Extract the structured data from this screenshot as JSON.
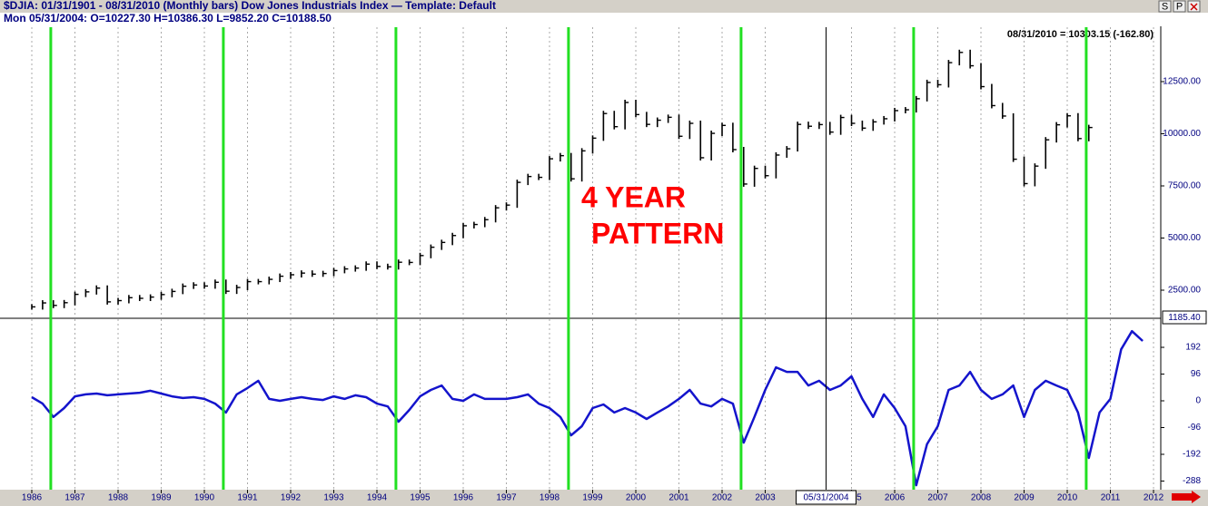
{
  "chart_data": {
    "title": "$DJIA:  01/31/1901 - 08/31/2010  (Monthly bars)   Dow Jones Industrials Index  —  Template: Default",
    "subtitle": "Mon  05/31/2004:  O=10227.30  H=10386.30  L=9852.20  C=10188.50",
    "info": "08/31/2010 = 10303.15 (-162.80)",
    "buttons": [
      "S",
      "P"
    ],
    "annotation": [
      "4 YEAR",
      "PATTERN"
    ],
    "cursor": {
      "x": 2004.41,
      "label": "05/31/2004"
    },
    "markers": {
      "color": "#22e022",
      "x": [
        1986.44,
        1990.44,
        1994.44,
        1998.44,
        2002.44,
        2006.44,
        2010.44
      ]
    },
    "xlim": [
      1985.263,
      2012.168
    ],
    "xticks": [
      1986,
      1987,
      1988,
      1989,
      1990,
      1991,
      1992,
      1993,
      1994,
      1995,
      1996,
      1997,
      1998,
      1999,
      2000,
      2001,
      2002,
      2003,
      2005,
      2006,
      2007,
      2008,
      2009,
      2010,
      2011,
      2012
    ],
    "grid": true,
    "x": [
      1986,
      1986.25,
      1986.5,
      1986.75,
      1987,
      1987.25,
      1987.5,
      1987.75,
      1988,
      1988.25,
      1988.5,
      1988.75,
      1989,
      1989.25,
      1989.5,
      1989.75,
      1990,
      1990.25,
      1990.5,
      1990.75,
      1991,
      1991.25,
      1991.5,
      1991.75,
      1992,
      1992.25,
      1992.5,
      1992.75,
      1993,
      1993.25,
      1993.5,
      1993.75,
      1994,
      1994.25,
      1994.5,
      1994.75,
      1995,
      1995.25,
      1995.5,
      1995.75,
      1996,
      1996.25,
      1996.5,
      1996.75,
      1997,
      1997.25,
      1997.5,
      1997.75,
      1998,
      1998.25,
      1998.5,
      1998.75,
      1999,
      1999.25,
      1999.5,
      1999.75,
      2000,
      2000.25,
      2000.5,
      2000.75,
      2001,
      2001.25,
      2001.5,
      2001.75,
      2002,
      2002.25,
      2002.5,
      2002.75,
      2003,
      2003.25,
      2003.5,
      2003.75,
      2004,
      2004.25,
      2004.5,
      2004.75,
      2005,
      2005.25,
      2005.5,
      2005.75,
      2006,
      2006.25,
      2006.5,
      2006.75,
      2007,
      2007.25,
      2007.5,
      2007.75,
      2008,
      2008.25,
      2008.5,
      2008.75,
      2009,
      2009.25,
      2009.5,
      2009.75,
      2010,
      2010.25,
      2010.5,
      2010.75,
      2011,
      2011.25,
      2011.5,
      2011.75
    ],
    "panels": [
      {
        "type": "bar",
        "ylim": [
          1196,
          15109
        ],
        "bottom_label": "1185.40",
        "yticks": [
          {
            "value": 2500,
            "label": "2500.00"
          },
          {
            "value": 5000,
            "label": "5000.00"
          },
          {
            "value": 7500,
            "label": "7500.00"
          },
          {
            "value": 10000,
            "label": "10000.00"
          },
          {
            "value": 12500,
            "label": "12500.00"
          }
        ],
        "series": [
          {
            "color": "#000000",
            "values": [
              1700,
              1890,
              1770,
              1900,
              2300,
              2420,
              2600,
              1940,
              2000,
              2140,
              2110,
              2170,
              2290,
              2440,
              2690,
              2750,
              2700,
              2880,
              2450,
              2630,
              2910,
              2910,
              3020,
              3170,
              3240,
              3320,
              3270,
              3300,
              3440,
              3520,
              3560,
              3750,
              3640,
              3620,
              3840,
              3830,
              4160,
              4560,
              4790,
              5120,
              5590,
              5650,
              5880,
              6450,
              6580,
              7670,
              7950,
              7910,
              8800,
              8950,
              7840,
              9180,
              9790,
              10970,
              10340,
              11500,
              10920,
              10450,
              10650,
              10790,
              9880,
              10500,
              8850,
              10020,
              10400,
              9240,
              7590,
              8340,
              7990,
              8980,
              9280,
              10450,
              10360,
              10440,
              10080,
              10780,
              10500,
              10270,
              10570,
              10720,
              11110,
              11150,
              11680,
              12460,
              12350,
              13410,
              13900,
              13260,
              12260,
              11350,
              10850,
              8780,
              7610,
              8450,
              9710,
              10430,
              10860,
              9770,
              10300,
              null,
              null,
              null,
              null,
              null
            ]
          }
        ]
      },
      {
        "type": "line",
        "ylim": [
          -319,
          293
        ],
        "yticks": [
          192,
          96,
          0,
          -96,
          -192,
          -288
        ],
        "series": [
          {
            "color": "#1414cc",
            "values": [
              13,
              -10,
              -58,
              -26,
              16,
              23,
              26,
              20,
              23,
              26,
              29,
              36,
              26,
              16,
              10,
              13,
              7,
              -10,
              -42,
              23,
              46,
              72,
              7,
              0,
              7,
              13,
              7,
              3,
              16,
              7,
              20,
              13,
              -10,
              -20,
              -75,
              -33,
              16,
              39,
              55,
              7,
              0,
              23,
              7,
              7,
              7,
              13,
              23,
              -10,
              -26,
              -58,
              -124,
              -91,
              -26,
              -13,
              -42,
              -26,
              -42,
              -65,
              -42,
              -20,
              7,
              39,
              -10,
              -20,
              7,
              -10,
              -150,
              -58,
              39,
              120,
              104,
              104,
              55,
              72,
              39,
              55,
              88,
              7,
              -58,
              23,
              -26,
              -91,
              -303,
              -156,
              -91,
              39,
              55,
              104,
              39,
              7,
              23,
              55,
              -58,
              39,
              72,
              55,
              39,
              -42,
              -205,
              -42,
              7,
              185,
              250,
              215
            ]
          }
        ]
      }
    ]
  }
}
